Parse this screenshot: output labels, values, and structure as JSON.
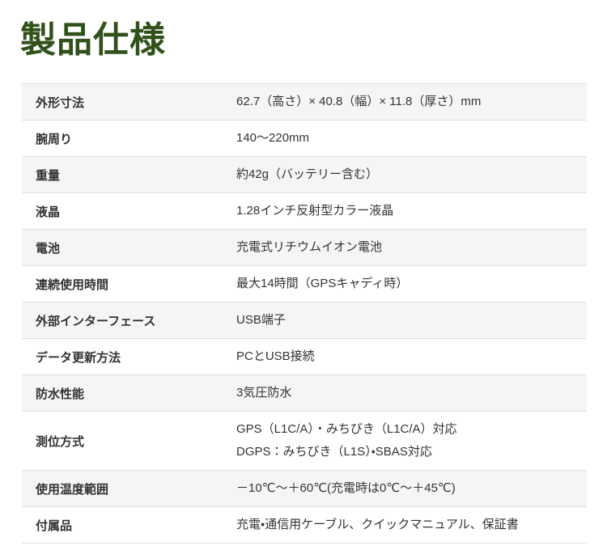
{
  "colors": {
    "title-color": "#31511b",
    "stripe": "#f5f5f5",
    "divider": "#dedede",
    "text": "#333333",
    "bg": "#ffffff"
  },
  "page": {
    "title": "製品仕様"
  },
  "spec_table": {
    "rows": [
      {
        "label": "外形寸法",
        "value": "62.7（高さ）× 40.8（幅）× 11.8（厚さ）mm"
      },
      {
        "label": "腕周り",
        "value": "140～220mm"
      },
      {
        "label": "重量",
        "value": "約42g（バッテリー含む）"
      },
      {
        "label": "液晶",
        "value": "1.28インチ反射型カラー液晶"
      },
      {
        "label": "電池",
        "value": "充電式リチウムイオン電池"
      },
      {
        "label": "連続使用時間",
        "value": "最大14時間（GPSキャディ時）"
      },
      {
        "label": "外部インターフェース",
        "value": "USB端子"
      },
      {
        "label": "データ更新方法",
        "value": "PCとUSB接続"
      },
      {
        "label": "防水性能",
        "value": "3気圧防水"
      },
      {
        "label": "測位方式",
        "value": "GPS（L1C/A）・みちびき（L1C/A）対応\nDGPS：みちびき（L1S）・SBAS対応"
      },
      {
        "label": "使用温度範囲",
        "value": "－10℃～＋60℃(充電時は0℃～＋45℃)"
      },
      {
        "label": "付属品",
        "value": "充電・通信用ケーブル、クイックマニュアル、保証書"
      }
    ]
  }
}
